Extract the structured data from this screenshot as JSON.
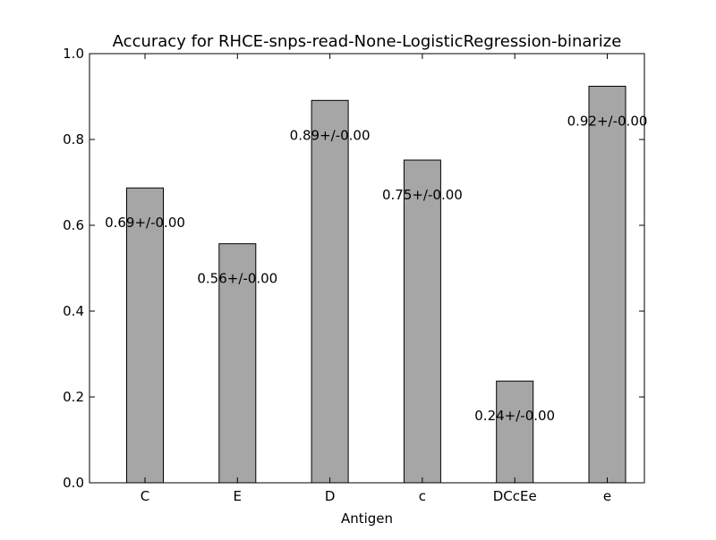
{
  "chart_data": {
    "type": "bar",
    "title": "Accuracy for RHCE-snps-read-None-LogisticRegression-binarize",
    "xlabel": "Antigen",
    "ylabel": "",
    "categories": [
      "C",
      "E",
      "D",
      "c",
      "DCcEe",
      "e"
    ],
    "values": [
      0.687,
      0.557,
      0.891,
      0.752,
      0.237,
      0.924
    ],
    "data_labels": [
      "0.69+/-0.00",
      "0.56+/-0.00",
      "0.89+/-0.00",
      "0.75+/-0.00",
      "0.24+/-0.00",
      "0.92+/-0.00"
    ],
    "ylim": [
      0,
      1.0
    ],
    "yticks": [
      0.0,
      0.2,
      0.4,
      0.6,
      0.8,
      1.0
    ],
    "ytick_labels": [
      "0.0",
      "0.2",
      "0.4",
      "0.6",
      "0.8",
      "1.0"
    ],
    "grid": false,
    "legend": "none",
    "colors": {
      "bar_fill": "#a6a6a6",
      "bar_edge": "#000000",
      "axes": "#000000",
      "background": "#ffffff"
    }
  }
}
